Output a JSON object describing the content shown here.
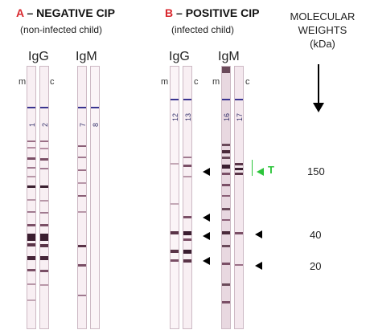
{
  "panel_a": {
    "letter": "A",
    "title": " – NEGATIVE CIP",
    "subtitle": "(non-infected child)",
    "igg": "IgG",
    "igm": "IgM",
    "m": "m",
    "c": "c",
    "strips": [
      "1",
      "2",
      "7",
      "8"
    ]
  },
  "panel_b": {
    "letter": "B",
    "title": " – POSITIVE CIP",
    "subtitle": "(infected child)",
    "igg": "IgG",
    "igm": "IgM",
    "m": "m",
    "c": "c",
    "strips": [
      "12",
      "13",
      "16",
      "17"
    ],
    "t_label": "T"
  },
  "molecular_weights": {
    "header_line1": "MOLECULAR",
    "header_line2": "WEIGHTS",
    "header_line3": "(kDa)",
    "values": [
      "150",
      "40",
      "20"
    ]
  },
  "colors": {
    "accent_red": "#d8262c",
    "green_marker": "#2cc43a",
    "control_line": "#3a3490"
  }
}
